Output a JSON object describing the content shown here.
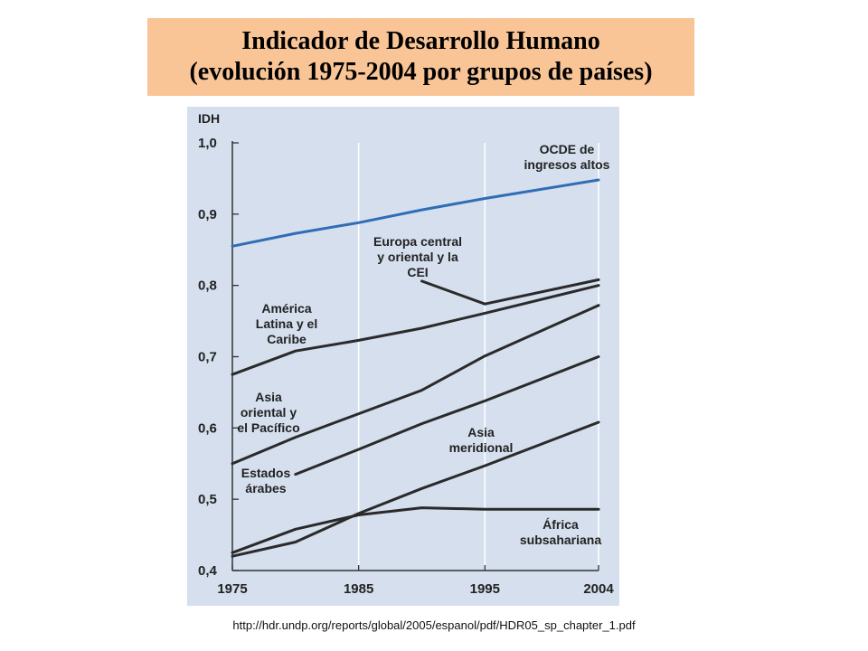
{
  "title": {
    "line1": "Indicador de Desarrollo Humano",
    "line2": "(evolución 1975-2004 por grupos de países)"
  },
  "source_url": "http://hdr.undp.org/reports/global/2005/espanol/pdf/HDR05_sp_chapter_1.pdf",
  "colors": {
    "title_bg": "#f9c596",
    "plot_bg": "#d5dfee",
    "oecd_line": "#2f6db5",
    "other_lines": "#2a2a2a"
  },
  "chart_data": {
    "type": "line",
    "title": "",
    "ylabel": "IDH",
    "xlabel": "",
    "xlim": [
      1975,
      2004
    ],
    "ylim": [
      0.4,
      1.0
    ],
    "x_ticks": [
      1975,
      1985,
      1995,
      2004
    ],
    "x_tick_labels": [
      "1975",
      "1985",
      "1995",
      "2004"
    ],
    "y_ticks": [
      0.4,
      0.5,
      0.6,
      0.7,
      0.8,
      0.9,
      1.0
    ],
    "y_tick_labels": [
      "0,4",
      "0,5",
      "0,6",
      "0,7",
      "0,8",
      "0,9",
      "1,0"
    ],
    "grid": "vertical",
    "series": [
      {
        "name": "OCDE de ingresos altos",
        "label_lines": [
          "OCDE de",
          "ingresos altos"
        ],
        "color": "#2f6db5",
        "x": [
          1975,
          1980,
          1985,
          1990,
          1995,
          2004
        ],
        "y": [
          0.855,
          0.873,
          0.888,
          0.906,
          0.922,
          0.948
        ]
      },
      {
        "name": "Europa central y oriental y la CEI",
        "label_lines": [
          "Europa central",
          "y oriental y la",
          "CEI"
        ],
        "color": "#2a2a2a",
        "x": [
          1990,
          1995,
          2004
        ],
        "y": [
          0.806,
          0.774,
          0.808
        ]
      },
      {
        "name": "América Latina y el Caribe",
        "label_lines": [
          "América",
          "Latina y el",
          "Caribe"
        ],
        "color": "#2a2a2a",
        "x": [
          1975,
          1980,
          1985,
          1990,
          1995,
          2004
        ],
        "y": [
          0.675,
          0.708,
          0.723,
          0.74,
          0.761,
          0.8
        ]
      },
      {
        "name": "Asia oriental y el Pacífico",
        "label_lines": [
          "Asia",
          "oriental y",
          "el Pacífico"
        ],
        "color": "#2a2a2a",
        "x": [
          1975,
          1980,
          1985,
          1990,
          1995,
          2004
        ],
        "y": [
          0.55,
          0.587,
          0.62,
          0.653,
          0.701,
          0.772
        ]
      },
      {
        "name": "Estados árabes",
        "label_lines": [
          "Estados",
          "árabes"
        ],
        "color": "#2a2a2a",
        "x": [
          1980,
          1985,
          1990,
          1995,
          2004
        ],
        "y": [
          0.535,
          0.57,
          0.606,
          0.638,
          0.7
        ]
      },
      {
        "name": "Asia meridional",
        "label_lines": [
          "Asia",
          "meridional"
        ],
        "color": "#2a2a2a",
        "x": [
          1975,
          1980,
          1985,
          1990,
          1995,
          2004
        ],
        "y": [
          0.42,
          0.44,
          0.48,
          0.515,
          0.547,
          0.608
        ]
      },
      {
        "name": "África subsahariana",
        "label_lines": [
          "África",
          "subsahariana"
        ],
        "color": "#2a2a2a",
        "x": [
          1975,
          1980,
          1985,
          1990,
          1995,
          2004
        ],
        "y": [
          0.425,
          0.458,
          0.478,
          0.488,
          0.486,
          0.486
        ]
      }
    ]
  }
}
